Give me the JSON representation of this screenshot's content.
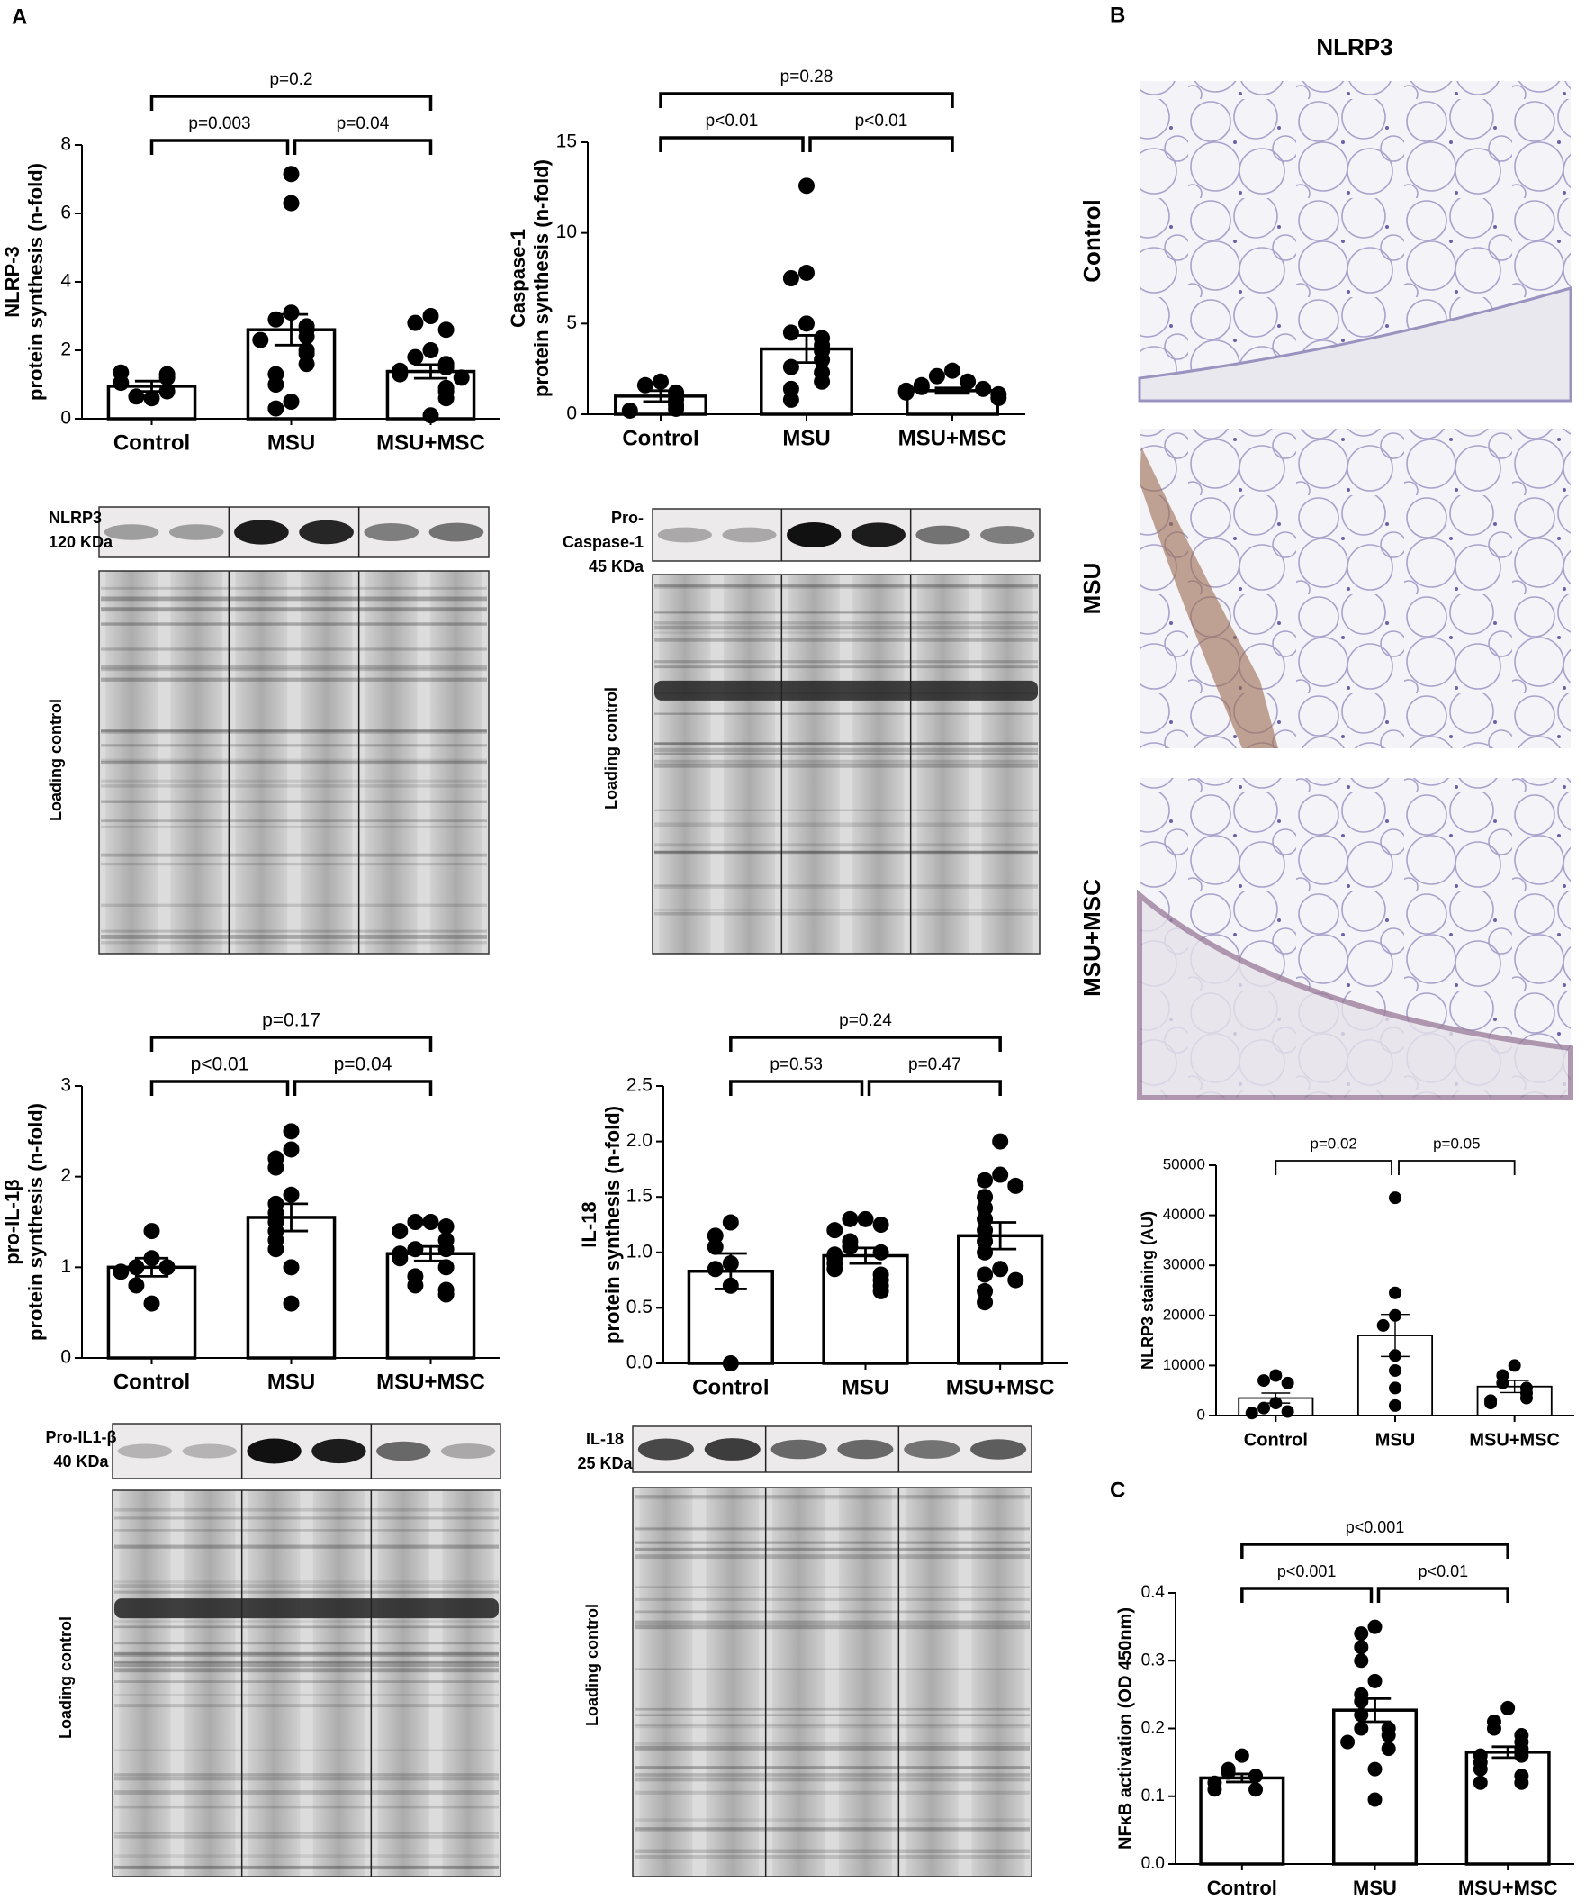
{
  "panels": [
    "A",
    "B",
    "C"
  ],
  "histology": {
    "title": "NLRP3",
    "rows": [
      "Control",
      "MSU",
      "MSU+MSC"
    ]
  },
  "blots": [
    {
      "labels": [
        "NLRP3",
        "120 KDa"
      ],
      "loading_label": "Loading control"
    },
    {
      "labels": [
        "Pro-",
        "Caspase-1",
        "45 KDa"
      ],
      "loading_label": "Loading control"
    },
    {
      "labels": [
        "Pro-IL1-β",
        "40 KDa"
      ],
      "loading_label": "Loading control"
    },
    {
      "labels": [
        "IL-18",
        "25 KDa"
      ],
      "loading_label": "Loading control"
    }
  ],
  "chart_data": [
    {
      "type": "bar",
      "ylabel": [
        "NLRP-3",
        "protein synthesis (n-fold)"
      ],
      "categories": [
        "Control",
        "MSU",
        "MSU+MSC"
      ],
      "values": [
        0.95,
        2.6,
        1.38
      ],
      "errors": [
        0.15,
        0.45,
        0.2
      ],
      "points": [
        [
          0.6,
          0.65,
          0.8,
          1.05,
          1.2,
          1.3,
          1.35
        ],
        [
          7.15,
          6.3,
          3.1,
          2.9,
          2.7,
          2.6,
          2.4,
          2.3,
          2.0,
          1.9,
          1.6,
          1.3,
          1.0,
          0.5,
          0.3
        ],
        [
          3.0,
          2.8,
          2.6,
          2.0,
          1.8,
          1.6,
          1.5,
          1.4,
          1.3,
          1.2,
          0.9,
          0.8,
          0.6,
          0.1
        ]
      ],
      "ylim": [
        0,
        8
      ],
      "yticks": [
        0,
        2,
        4,
        6,
        8
      ],
      "color": "#ffffff",
      "edgecolor": "#000000",
      "comparisons": [
        {
          "between": [
            "Control",
            "MSU"
          ],
          "label": "p=0.003"
        },
        {
          "between": [
            "MSU",
            "MSU+MSC"
          ],
          "label": "p=0.04"
        },
        {
          "between": [
            "Control",
            "MSU+MSC"
          ],
          "label": "p=0.2"
        }
      ]
    },
    {
      "type": "bar",
      "ylabel": [
        "Caspase-1",
        "protein synthesis (n-fold)"
      ],
      "categories": [
        "Control",
        "MSU",
        "MSU+MSC"
      ],
      "values": [
        1.0,
        3.6,
        1.3
      ],
      "errors": [
        0.3,
        0.75,
        0.15
      ],
      "points": [
        [
          1.8,
          1.6,
          1.2,
          0.8,
          0.5,
          0.3,
          0.2
        ],
        [
          12.6,
          7.8,
          7.5,
          5.0,
          4.5,
          4.2,
          3.8,
          3.5,
          3.0,
          2.6,
          2.3,
          1.8,
          1.4,
          0.8
        ],
        [
          2.4,
          2.1,
          1.8,
          1.6,
          1.5,
          1.4,
          1.3,
          1.2,
          1.1,
          0.9
        ]
      ],
      "ylim": [
        0,
        15
      ],
      "yticks": [
        0,
        5,
        10,
        15
      ],
      "color": "#ffffff",
      "edgecolor": "#000000",
      "comparisons": [
        {
          "between": [
            "Control",
            "MSU"
          ],
          "label": "p<0.01"
        },
        {
          "between": [
            "MSU",
            "MSU+MSC"
          ],
          "label": "p<0.01"
        },
        {
          "between": [
            "Control",
            "MSU+MSC"
          ],
          "label": "p=0.28"
        }
      ]
    },
    {
      "type": "bar",
      "ylabel": [
        "pro-IL-1β",
        "protein synthesis (n-fold)"
      ],
      "categories": [
        "Control",
        "MSU",
        "MSU+MSC"
      ],
      "values": [
        1.0,
        1.55,
        1.15
      ],
      "errors": [
        0.1,
        0.15,
        0.08
      ],
      "points": [
        [
          1.4,
          1.1,
          1.0,
          1.0,
          0.95,
          0.8,
          0.6
        ],
        [
          2.5,
          2.3,
          2.2,
          2.1,
          1.8,
          1.7,
          1.6,
          1.5,
          1.4,
          1.3,
          1.2,
          1.0,
          0.6
        ],
        [
          1.5,
          1.5,
          1.45,
          1.4,
          1.3,
          1.2,
          1.2,
          1.15,
          1.1,
          1.0,
          0.9,
          0.8,
          0.75,
          0.7
        ]
      ],
      "ylim": [
        0,
        3
      ],
      "yticks": [
        0,
        1,
        2,
        3
      ],
      "color": "#ffffff",
      "edgecolor": "#000000",
      "comparisons": [
        {
          "between": [
            "Control",
            "MSU"
          ],
          "label": "p<0.01"
        },
        {
          "between": [
            "MSU",
            "MSU+MSC"
          ],
          "label": "p=0.04"
        },
        {
          "between": [
            "Control",
            "MSU+MSC"
          ],
          "label": "p=0.17"
        }
      ]
    },
    {
      "type": "bar",
      "ylabel": [
        "IL-18",
        "protein synthesis (n-fold)"
      ],
      "categories": [
        "Control",
        "MSU",
        "MSU+MSC"
      ],
      "values": [
        0.83,
        0.97,
        1.15
      ],
      "errors": [
        0.16,
        0.07,
        0.12
      ],
      "points": [
        [
          1.27,
          1.15,
          1.05,
          0.9,
          0.85,
          0.7,
          0
        ],
        [
          1.3,
          1.3,
          1.25,
          1.2,
          1.1,
          1.05,
          1.0,
          0.98,
          0.95,
          0.9,
          0.85,
          0.8,
          0.75,
          0.7,
          0.65
        ],
        [
          2.0,
          1.7,
          1.65,
          1.6,
          1.5,
          1.4,
          1.3,
          1.2,
          1.1,
          1.0,
          0.85,
          0.8,
          0.75,
          0.65,
          0.55
        ]
      ],
      "ylim": [
        0,
        2.5
      ],
      "yticks": [
        {
          "value": 0,
          "label": "0.0"
        },
        0.5,
        {
          "value": 1,
          "label": "1.0"
        },
        1.5,
        {
          "value": 2,
          "label": "2.0"
        },
        2.5
      ],
      "color": "#ffffff",
      "edgecolor": "#000000",
      "comparisons": [
        {
          "between": [
            "Control",
            "MSU"
          ],
          "label": "p=0.53"
        },
        {
          "between": [
            "MSU",
            "MSU+MSC"
          ],
          "label": "p=0.47"
        },
        {
          "between": [
            "Control",
            "MSU+MSC"
          ],
          "label": "p=0.24"
        }
      ]
    },
    {
      "type": "bar",
      "ylabel": [
        "NLRP3 staining (AU)"
      ],
      "categories": [
        "Control",
        "MSU",
        "MSU+MSC"
      ],
      "values": [
        3500,
        16000,
        5800
      ],
      "errors": [
        1000,
        4200,
        1200
      ],
      "points": [
        [
          8000,
          7000,
          6500,
          2500,
          1500,
          800,
          500
        ],
        [
          43500,
          24500,
          20000,
          18000,
          12000,
          9000,
          5500,
          2000
        ],
        [
          10000,
          8000,
          6500,
          5500,
          4500,
          3500,
          3000,
          2500
        ]
      ],
      "ylim": [
        0,
        50000
      ],
      "yticks": [
        0,
        10000,
        20000,
        30000,
        40000,
        50000
      ],
      "color": "#ffffff",
      "edgecolor": "#000000",
      "comparisons": [
        {
          "between": [
            "Control",
            "MSU"
          ],
          "label": "p=0.02"
        },
        {
          "between": [
            "MSU",
            "MSU+MSC"
          ],
          "label": "p=0.05"
        }
      ]
    },
    {
      "type": "bar",
      "ylabel": [
        "NFκB activation (OD 450nm)"
      ],
      "categories": [
        "Control",
        "MSU",
        "MSU+MSC"
      ],
      "values": [
        0.127,
        0.227,
        0.165
      ],
      "errors": [
        0.006,
        0.017,
        0.008
      ],
      "points": [
        [
          0.16,
          0.14,
          0.135,
          0.13,
          0.12,
          0.11,
          0.11
        ],
        [
          0.35,
          0.34,
          0.32,
          0.3,
          0.27,
          0.25,
          0.24,
          0.22,
          0.2,
          0.2,
          0.19,
          0.18,
          0.17,
          0.14,
          0.095
        ],
        [
          0.23,
          0.21,
          0.2,
          0.19,
          0.18,
          0.17,
          0.16,
          0.16,
          0.15,
          0.14,
          0.13,
          0.12,
          0.12
        ]
      ],
      "ylim": [
        0,
        0.4
      ],
      "yticks": [
        {
          "value": 0,
          "label": "0.0"
        },
        0.1,
        0.2,
        0.3,
        0.4
      ],
      "color": "#ffffff",
      "edgecolor": "#000000",
      "comparisons": [
        {
          "between": [
            "Control",
            "MSU"
          ],
          "label": "p<0.001"
        },
        {
          "between": [
            "MSU",
            "MSU+MSC"
          ],
          "label": "p<0.01"
        },
        {
          "between": [
            "Control",
            "MSU+MSC"
          ],
          "label": "p<0.001"
        }
      ]
    }
  ]
}
